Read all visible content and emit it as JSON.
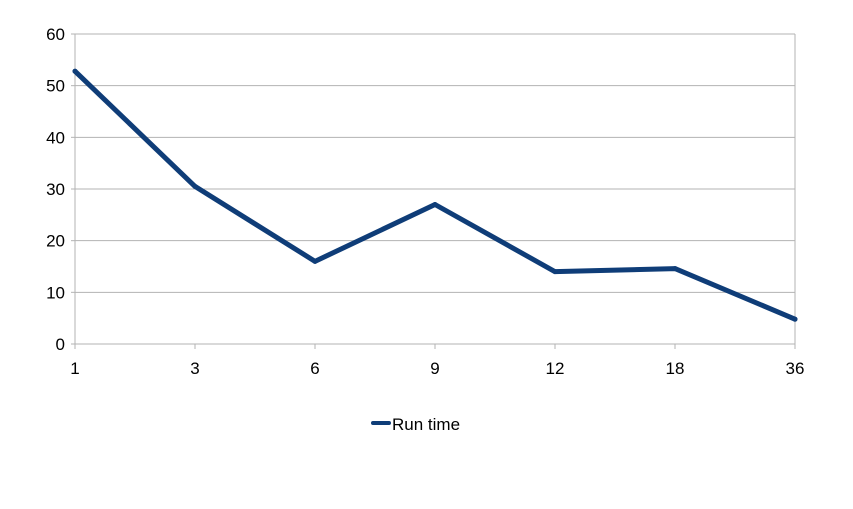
{
  "chart_data": {
    "type": "line",
    "title": "",
    "xlabel": "",
    "ylabel": "",
    "categories": [
      "1",
      "3",
      "6",
      "9",
      "12",
      "18",
      "36"
    ],
    "series": [
      {
        "name": "Run time",
        "color": "#0f3d78",
        "values": [
          52.8,
          30.5,
          16.0,
          27.0,
          14.0,
          14.6,
          4.8
        ]
      }
    ],
    "ylim": [
      0,
      60
    ],
    "yticks": [
      "0",
      "10",
      "20",
      "30",
      "40",
      "50",
      "60"
    ],
    "grid": true,
    "legend_position": "bottom"
  }
}
